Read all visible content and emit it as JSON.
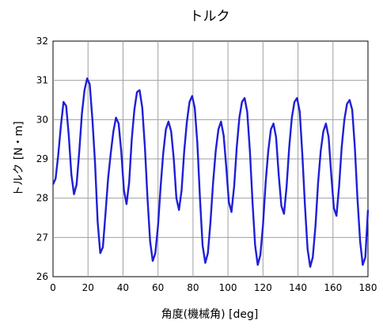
{
  "chart_data": {
    "type": "line",
    "title": "トルク",
    "xlabel": "角度(機械角) [deg]",
    "ylabel": "トルク [N・m]",
    "xlim": [
      0,
      180
    ],
    "ylim": [
      26,
      32
    ],
    "xticks": [
      "0",
      "20",
      "40",
      "60",
      "80",
      "100",
      "120",
      "140",
      "160",
      "180"
    ],
    "yticks": [
      "26",
      "27",
      "28",
      "29",
      "30",
      "31",
      "32"
    ],
    "grid": true,
    "series": [
      {
        "color": "#1f1fd6",
        "x": [
          0,
          1.5,
          3,
          4.5,
          6,
          7.5,
          9,
          10.5,
          12,
          13.5,
          15,
          16.5,
          18,
          19.5,
          21,
          22.5,
          24,
          25.5,
          27,
          28.5,
          30,
          31.5,
          33,
          34.5,
          36,
          37.5,
          39,
          40.5,
          42,
          43.5,
          45,
          46.5,
          48,
          49.5,
          51,
          52.5,
          54,
          55.5,
          57,
          58.5,
          60,
          61.5,
          63,
          64.5,
          66,
          67.5,
          69,
          70.5,
          72,
          73.5,
          75,
          76.5,
          78,
          79.5,
          81,
          82.5,
          84,
          85.5,
          87,
          88.5,
          90,
          91.5,
          93,
          94.5,
          96,
          97.5,
          99,
          100.5,
          102,
          103.5,
          105,
          106.5,
          108,
          109.5,
          111,
          112.5,
          114,
          115.5,
          117,
          118.5,
          120,
          121.5,
          123,
          124.5,
          126,
          127.5,
          129,
          130.5,
          132,
          133.5,
          135,
          136.5,
          138,
          139.5,
          141,
          142.5,
          144,
          145.5,
          147,
          148.5,
          150,
          151.5,
          153,
          154.5,
          156,
          157.5,
          159,
          160.5,
          162,
          163.5,
          165,
          166.5,
          168,
          169.5,
          171,
          172.5,
          174,
          175.5,
          177,
          178.5,
          180
        ],
        "y": [
          28.35,
          28.5,
          29.1,
          29.85,
          30.45,
          30.35,
          29.6,
          28.6,
          28.1,
          28.35,
          29.2,
          30.15,
          30.75,
          31.05,
          30.9,
          30.0,
          28.9,
          27.4,
          26.6,
          26.75,
          27.6,
          28.5,
          29.15,
          29.7,
          30.05,
          29.9,
          29.2,
          28.2,
          27.85,
          28.4,
          29.5,
          30.25,
          30.7,
          30.75,
          30.3,
          29.3,
          28.0,
          26.9,
          26.4,
          26.6,
          27.3,
          28.3,
          29.15,
          29.75,
          29.95,
          29.7,
          29.0,
          28.0,
          27.7,
          28.2,
          29.2,
          29.95,
          30.45,
          30.6,
          30.3,
          29.4,
          28.0,
          26.8,
          26.35,
          26.6,
          27.4,
          28.4,
          29.2,
          29.75,
          29.95,
          29.6,
          28.8,
          27.9,
          27.65,
          28.3,
          29.3,
          30.05,
          30.45,
          30.55,
          30.2,
          29.2,
          27.9,
          26.8,
          26.3,
          26.55,
          27.3,
          28.4,
          29.2,
          29.75,
          29.9,
          29.55,
          28.6,
          27.8,
          27.6,
          28.3,
          29.3,
          30.05,
          30.45,
          30.55,
          30.2,
          29.1,
          27.8,
          26.7,
          26.25,
          26.5,
          27.3,
          28.4,
          29.2,
          29.7,
          29.9,
          29.55,
          28.6,
          27.75,
          27.55,
          28.3,
          29.3,
          30.0,
          30.4,
          30.5,
          30.25,
          29.3,
          28.0,
          26.9,
          26.3,
          26.5,
          27.7
        ]
      }
    ]
  }
}
